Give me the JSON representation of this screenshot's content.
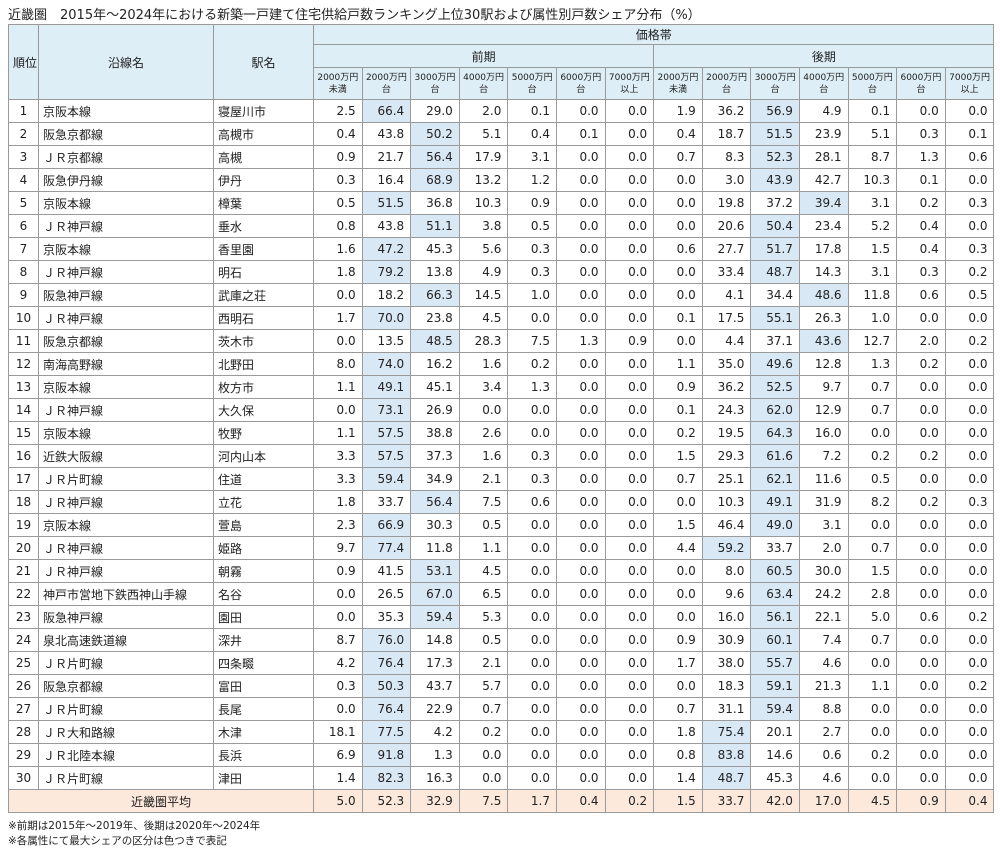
{
  "title": "近畿圏　2015年～2024年における新築一戸建て住宅供給戸数ランキング上位30駅および属性別戸数シェア分布（%）",
  "table": {
    "header": {
      "rank": "順位",
      "line": "沿線名",
      "station": "駅名",
      "price_band": "価格帯",
      "early": "前期",
      "late": "後期",
      "bands": [
        "2000万円\n未満",
        "2000万円\n台",
        "3000万円\n台",
        "4000万円\n台",
        "5000万円\n台",
        "6000万円\n台",
        "7000万円\n以上"
      ]
    },
    "rows": [
      {
        "rank": 1,
        "line": "京阪本線",
        "station": "寝屋川市",
        "early": [
          "2.5",
          "66.4",
          "29.0",
          "2.0",
          "0.1",
          "0.0",
          "0.0"
        ],
        "late": [
          "1.9",
          "36.2",
          "56.9",
          "4.9",
          "0.1",
          "0.0",
          "0.0"
        ]
      },
      {
        "rank": 2,
        "line": "阪急京都線",
        "station": "高槻市",
        "early": [
          "0.4",
          "43.8",
          "50.2",
          "5.1",
          "0.4",
          "0.1",
          "0.0"
        ],
        "late": [
          "0.4",
          "18.7",
          "51.5",
          "23.9",
          "5.1",
          "0.3",
          "0.1"
        ]
      },
      {
        "rank": 3,
        "line": "ＪＲ京都線",
        "station": "高槻",
        "early": [
          "0.9",
          "21.7",
          "56.4",
          "17.9",
          "3.1",
          "0.0",
          "0.0"
        ],
        "late": [
          "0.7",
          "8.3",
          "52.3",
          "28.1",
          "8.7",
          "1.3",
          "0.6"
        ]
      },
      {
        "rank": 4,
        "line": "阪急伊丹線",
        "station": "伊丹",
        "early": [
          "0.3",
          "16.4",
          "68.9",
          "13.2",
          "1.2",
          "0.0",
          "0.0"
        ],
        "late": [
          "0.0",
          "3.0",
          "43.9",
          "42.7",
          "10.3",
          "0.1",
          "0.0"
        ]
      },
      {
        "rank": 5,
        "line": "京阪本線",
        "station": "樟葉",
        "early": [
          "0.5",
          "51.5",
          "36.8",
          "10.3",
          "0.9",
          "0.0",
          "0.0"
        ],
        "late": [
          "0.0",
          "19.8",
          "37.2",
          "39.4",
          "3.1",
          "0.2",
          "0.3"
        ]
      },
      {
        "rank": 6,
        "line": "ＪＲ神戸線",
        "station": "垂水",
        "early": [
          "0.8",
          "43.8",
          "51.1",
          "3.8",
          "0.5",
          "0.0",
          "0.0"
        ],
        "late": [
          "0.0",
          "20.6",
          "50.4",
          "23.4",
          "5.2",
          "0.4",
          "0.0"
        ]
      },
      {
        "rank": 7,
        "line": "京阪本線",
        "station": "香里園",
        "early": [
          "1.6",
          "47.2",
          "45.3",
          "5.6",
          "0.3",
          "0.0",
          "0.0"
        ],
        "late": [
          "0.6",
          "27.7",
          "51.7",
          "17.8",
          "1.5",
          "0.4",
          "0.3"
        ]
      },
      {
        "rank": 8,
        "line": "ＪＲ神戸線",
        "station": "明石",
        "early": [
          "1.8",
          "79.2",
          "13.8",
          "4.9",
          "0.3",
          "0.0",
          "0.0"
        ],
        "late": [
          "0.0",
          "33.4",
          "48.7",
          "14.3",
          "3.1",
          "0.3",
          "0.2"
        ]
      },
      {
        "rank": 9,
        "line": "阪急神戸線",
        "station": "武庫之荘",
        "early": [
          "0.0",
          "18.2",
          "66.3",
          "14.5",
          "1.0",
          "0.0",
          "0.0"
        ],
        "late": [
          "0.0",
          "4.1",
          "34.4",
          "48.6",
          "11.8",
          "0.6",
          "0.5"
        ]
      },
      {
        "rank": 10,
        "line": "ＪＲ神戸線",
        "station": "西明石",
        "early": [
          "1.7",
          "70.0",
          "23.8",
          "4.5",
          "0.0",
          "0.0",
          "0.0"
        ],
        "late": [
          "0.1",
          "17.5",
          "55.1",
          "26.3",
          "1.0",
          "0.0",
          "0.0"
        ]
      },
      {
        "rank": 11,
        "line": "阪急京都線",
        "station": "茨木市",
        "early": [
          "0.0",
          "13.5",
          "48.5",
          "28.3",
          "7.5",
          "1.3",
          "0.9"
        ],
        "late": [
          "0.0",
          "4.4",
          "37.1",
          "43.6",
          "12.7",
          "2.0",
          "0.2"
        ]
      },
      {
        "rank": 12,
        "line": "南海高野線",
        "station": "北野田",
        "early": [
          "8.0",
          "74.0",
          "16.2",
          "1.6",
          "0.2",
          "0.0",
          "0.0"
        ],
        "late": [
          "1.1",
          "35.0",
          "49.6",
          "12.8",
          "1.3",
          "0.2",
          "0.0"
        ]
      },
      {
        "rank": 13,
        "line": "京阪本線",
        "station": "枚方市",
        "early": [
          "1.1",
          "49.1",
          "45.1",
          "3.4",
          "1.3",
          "0.0",
          "0.0"
        ],
        "late": [
          "0.9",
          "36.2",
          "52.5",
          "9.7",
          "0.7",
          "0.0",
          "0.0"
        ]
      },
      {
        "rank": 14,
        "line": "ＪＲ神戸線",
        "station": "大久保",
        "early": [
          "0.0",
          "73.1",
          "26.9",
          "0.0",
          "0.0",
          "0.0",
          "0.0"
        ],
        "late": [
          "0.1",
          "24.3",
          "62.0",
          "12.9",
          "0.7",
          "0.0",
          "0.0"
        ]
      },
      {
        "rank": 15,
        "line": "京阪本線",
        "station": "牧野",
        "early": [
          "1.1",
          "57.5",
          "38.8",
          "2.6",
          "0.0",
          "0.0",
          "0.0"
        ],
        "late": [
          "0.2",
          "19.5",
          "64.3",
          "16.0",
          "0.0",
          "0.0",
          "0.0"
        ]
      },
      {
        "rank": 16,
        "line": "近鉄大阪線",
        "station": "河内山本",
        "early": [
          "3.3",
          "57.5",
          "37.3",
          "1.6",
          "0.3",
          "0.0",
          "0.0"
        ],
        "late": [
          "1.5",
          "29.3",
          "61.6",
          "7.2",
          "0.2",
          "0.2",
          "0.0"
        ]
      },
      {
        "rank": 17,
        "line": "ＪＲ片町線",
        "station": "住道",
        "early": [
          "3.3",
          "59.4",
          "34.9",
          "2.1",
          "0.3",
          "0.0",
          "0.0"
        ],
        "late": [
          "0.7",
          "25.1",
          "62.1",
          "11.6",
          "0.5",
          "0.0",
          "0.0"
        ]
      },
      {
        "rank": 18,
        "line": "ＪＲ神戸線",
        "station": "立花",
        "early": [
          "1.8",
          "33.7",
          "56.4",
          "7.5",
          "0.6",
          "0.0",
          "0.0"
        ],
        "late": [
          "0.0",
          "10.3",
          "49.1",
          "31.9",
          "8.2",
          "0.2",
          "0.3"
        ]
      },
      {
        "rank": 19,
        "line": "京阪本線",
        "station": "萱島",
        "early": [
          "2.3",
          "66.9",
          "30.3",
          "0.5",
          "0.0",
          "0.0",
          "0.0"
        ],
        "late": [
          "1.5",
          "46.4",
          "49.0",
          "3.1",
          "0.0",
          "0.0",
          "0.0"
        ]
      },
      {
        "rank": 20,
        "line": "ＪＲ神戸線",
        "station": "姫路",
        "early": [
          "9.7",
          "77.4",
          "11.8",
          "1.1",
          "0.0",
          "0.0",
          "0.0"
        ],
        "late": [
          "4.4",
          "59.2",
          "33.7",
          "2.0",
          "0.7",
          "0.0",
          "0.0"
        ]
      },
      {
        "rank": 21,
        "line": "ＪＲ神戸線",
        "station": "朝霧",
        "early": [
          "0.9",
          "41.5",
          "53.1",
          "4.5",
          "0.0",
          "0.0",
          "0.0"
        ],
        "late": [
          "0.0",
          "8.0",
          "60.5",
          "30.0",
          "1.5",
          "0.0",
          "0.0"
        ]
      },
      {
        "rank": 22,
        "line": "神戸市営地下鉄西神山手線",
        "station": "名谷",
        "early": [
          "0.0",
          "26.5",
          "67.0",
          "6.5",
          "0.0",
          "0.0",
          "0.0"
        ],
        "late": [
          "0.0",
          "9.6",
          "63.4",
          "24.2",
          "2.8",
          "0.0",
          "0.0"
        ]
      },
      {
        "rank": 23,
        "line": "阪急神戸線",
        "station": "園田",
        "early": [
          "0.0",
          "35.3",
          "59.4",
          "5.3",
          "0.0",
          "0.0",
          "0.0"
        ],
        "late": [
          "0.0",
          "16.0",
          "56.1",
          "22.1",
          "5.0",
          "0.6",
          "0.2"
        ]
      },
      {
        "rank": 24,
        "line": "泉北高速鉄道線",
        "station": "深井",
        "early": [
          "8.7",
          "76.0",
          "14.8",
          "0.5",
          "0.0",
          "0.0",
          "0.0"
        ],
        "late": [
          "0.9",
          "30.9",
          "60.1",
          "7.4",
          "0.7",
          "0.0",
          "0.0"
        ]
      },
      {
        "rank": 25,
        "line": "ＪＲ片町線",
        "station": "四条畷",
        "early": [
          "4.2",
          "76.4",
          "17.3",
          "2.1",
          "0.0",
          "0.0",
          "0.0"
        ],
        "late": [
          "1.7",
          "38.0",
          "55.7",
          "4.6",
          "0.0",
          "0.0",
          "0.0"
        ]
      },
      {
        "rank": 26,
        "line": "阪急京都線",
        "station": "富田",
        "early": [
          "0.3",
          "50.3",
          "43.7",
          "5.7",
          "0.0",
          "0.0",
          "0.0"
        ],
        "late": [
          "0.0",
          "18.3",
          "59.1",
          "21.3",
          "1.1",
          "0.0",
          "0.2"
        ]
      },
      {
        "rank": 27,
        "line": "ＪＲ片町線",
        "station": "長尾",
        "early": [
          "0.0",
          "76.4",
          "22.9",
          "0.7",
          "0.0",
          "0.0",
          "0.0"
        ],
        "late": [
          "0.7",
          "31.1",
          "59.4",
          "8.8",
          "0.0",
          "0.0",
          "0.0"
        ]
      },
      {
        "rank": 28,
        "line": "ＪＲ大和路線",
        "station": "木津",
        "early": [
          "18.1",
          "77.5",
          "4.2",
          "0.2",
          "0.0",
          "0.0",
          "0.0"
        ],
        "late": [
          "1.8",
          "75.4",
          "20.1",
          "2.7",
          "0.0",
          "0.0",
          "0.0"
        ]
      },
      {
        "rank": 29,
        "line": "ＪＲ北陸本線",
        "station": "長浜",
        "early": [
          "6.9",
          "91.8",
          "1.3",
          "0.0",
          "0.0",
          "0.0",
          "0.0"
        ],
        "late": [
          "0.8",
          "83.8",
          "14.6",
          "0.6",
          "0.2",
          "0.0",
          "0.0"
        ]
      },
      {
        "rank": 30,
        "line": "ＪＲ片町線",
        "station": "津田",
        "early": [
          "1.4",
          "82.3",
          "16.3",
          "0.0",
          "0.0",
          "0.0",
          "0.0"
        ],
        "late": [
          "1.4",
          "48.7",
          "45.3",
          "4.6",
          "0.0",
          "0.0",
          "0.0"
        ]
      }
    ],
    "average": {
      "label": "近畿圏平均",
      "early": [
        "5.0",
        "52.3",
        "32.9",
        "7.5",
        "1.7",
        "0.4",
        "0.2"
      ],
      "late": [
        "1.5",
        "33.7",
        "42.0",
        "17.0",
        "4.5",
        "0.9",
        "0.4"
      ]
    }
  },
  "notes": [
    "※前期は2015年～2019年、後期は2020年～2024年",
    "※各属性にて最大シェアの区分は色つきで表記"
  ]
}
